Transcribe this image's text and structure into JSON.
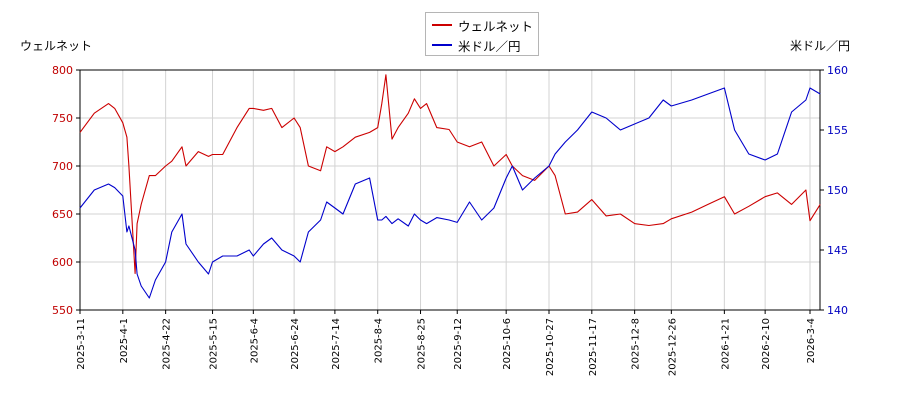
{
  "chart_data": {
    "type": "line",
    "legend_position": "top-center",
    "grid": true,
    "left_axis": {
      "label": "ウェルネット",
      "ylim": [
        550,
        800
      ],
      "ticks": [
        550,
        600,
        650,
        700,
        750,
        800
      ],
      "color": "#c00000"
    },
    "right_axis": {
      "label": "米ドル／円",
      "ylim": [
        140,
        160
      ],
      "ticks": [
        140,
        145,
        150,
        155,
        160
      ],
      "color": "#0000c0"
    },
    "x_ticks": [
      "2025-3-11",
      "2025-4-1",
      "2025-4-22",
      "2025-5-15",
      "2025-6-4",
      "2025-6-24",
      "2025-7-14",
      "2025-8-4",
      "2025-8-25",
      "2025-9-12",
      "2025-10-6",
      "2025-10-27",
      "2025-11-17",
      "2025-12-8",
      "2025-12-26",
      "2026-1-21",
      "2026-2-10",
      "2026-3-4"
    ],
    "series": [
      {
        "name": "ウェルネット",
        "axis": "left",
        "color": "#cc0000",
        "x": [
          "2025-3-11",
          "2025-3-18",
          "2025-3-25",
          "2025-3-28",
          "2025-4-1",
          "2025-4-3",
          "2025-4-4",
          "2025-4-7",
          "2025-4-8",
          "2025-4-10",
          "2025-4-14",
          "2025-4-17",
          "2025-4-22",
          "2025-4-25",
          "2025-4-30",
          "2025-5-2",
          "2025-5-8",
          "2025-5-13",
          "2025-5-15",
          "2025-5-20",
          "2025-5-27",
          "2025-6-2",
          "2025-6-4",
          "2025-6-9",
          "2025-6-13",
          "2025-6-18",
          "2025-6-24",
          "2025-6-27",
          "2025-7-1",
          "2025-7-7",
          "2025-7-10",
          "2025-7-14",
          "2025-7-18",
          "2025-7-24",
          "2025-7-31",
          "2025-8-4",
          "2025-8-6",
          "2025-8-8",
          "2025-8-11",
          "2025-8-14",
          "2025-8-19",
          "2025-8-22",
          "2025-8-25",
          "2025-8-28",
          "2025-9-2",
          "2025-9-8",
          "2025-9-12",
          "2025-9-18",
          "2025-9-24",
          "2025-9-30",
          "2025-10-6",
          "2025-10-9",
          "2025-10-14",
          "2025-10-20",
          "2025-10-27",
          "2025-10-30",
          "2025-11-4",
          "2025-11-10",
          "2025-11-17",
          "2025-11-24",
          "2025-12-1",
          "2025-12-8",
          "2025-12-15",
          "2025-12-22",
          "2025-12-26",
          "2026-1-5",
          "2026-1-13",
          "2026-1-21",
          "2026-1-26",
          "2026-2-2",
          "2026-2-10",
          "2026-2-16",
          "2026-2-23",
          "2026-3-2",
          "2026-3-4",
          "2026-3-9"
        ],
        "values": [
          735,
          755,
          765,
          760,
          745,
          730,
          700,
          588,
          640,
          660,
          690,
          690,
          700,
          705,
          720,
          700,
          715,
          710,
          712,
          712,
          740,
          760,
          760,
          758,
          760,
          740,
          750,
          740,
          700,
          695,
          720,
          715,
          720,
          730,
          735,
          740,
          765,
          795,
          728,
          740,
          755,
          770,
          760,
          765,
          740,
          738,
          725,
          720,
          725,
          700,
          712,
          700,
          690,
          685,
          700,
          690,
          650,
          652,
          665,
          648,
          650,
          640,
          638,
          640,
          645,
          652,
          660,
          668,
          650,
          658,
          668,
          672,
          660,
          675,
          643,
          660
        ]
      },
      {
        "name": "米ドル／円",
        "axis": "right",
        "color": "#0000cc",
        "x": [
          "2025-3-11",
          "2025-3-18",
          "2025-3-25",
          "2025-3-28",
          "2025-4-1",
          "2025-4-3",
          "2025-4-4",
          "2025-4-7",
          "2025-4-8",
          "2025-4-10",
          "2025-4-14",
          "2025-4-17",
          "2025-4-22",
          "2025-4-25",
          "2025-4-30",
          "2025-5-2",
          "2025-5-8",
          "2025-5-13",
          "2025-5-15",
          "2025-5-20",
          "2025-5-27",
          "2025-6-2",
          "2025-6-4",
          "2025-6-9",
          "2025-6-13",
          "2025-6-18",
          "2025-6-24",
          "2025-6-27",
          "2025-7-1",
          "2025-7-7",
          "2025-7-10",
          "2025-7-14",
          "2025-7-18",
          "2025-7-24",
          "2025-7-31",
          "2025-8-4",
          "2025-8-6",
          "2025-8-8",
          "2025-8-11",
          "2025-8-14",
          "2025-8-19",
          "2025-8-22",
          "2025-8-25",
          "2025-8-28",
          "2025-9-2",
          "2025-9-8",
          "2025-9-12",
          "2025-9-18",
          "2025-9-24",
          "2025-9-30",
          "2025-10-6",
          "2025-10-9",
          "2025-10-14",
          "2025-10-20",
          "2025-10-27",
          "2025-10-30",
          "2025-11-4",
          "2025-11-10",
          "2025-11-17",
          "2025-11-24",
          "2025-12-1",
          "2025-12-8",
          "2025-12-15",
          "2025-12-22",
          "2025-12-26",
          "2026-1-5",
          "2026-1-13",
          "2026-1-21",
          "2026-1-26",
          "2026-2-2",
          "2026-2-10",
          "2026-2-16",
          "2026-2-23",
          "2026-3-2",
          "2026-3-4",
          "2026-3-9"
        ],
        "values": [
          148.5,
          150,
          150.5,
          150.2,
          149.5,
          146.5,
          147,
          145,
          143,
          142,
          141,
          142.5,
          144,
          146.5,
          148,
          145.5,
          144,
          143,
          144,
          144.5,
          144.5,
          145,
          144.5,
          145.5,
          146,
          145,
          144.5,
          144,
          146.5,
          147.5,
          149,
          148.5,
          148,
          150.5,
          151,
          147.5,
          147.5,
          147.8,
          147.2,
          147.6,
          147,
          148,
          147.5,
          147.2,
          147.7,
          147.5,
          147.3,
          149,
          147.5,
          148.5,
          151,
          152,
          150,
          151,
          152,
          153,
          154,
          155,
          156.5,
          156,
          155,
          155.5,
          156,
          157.5,
          157,
          157.5,
          158,
          158.5,
          155,
          153,
          152.5,
          153,
          156.5,
          157.5,
          158.5,
          158
        ]
      }
    ]
  }
}
